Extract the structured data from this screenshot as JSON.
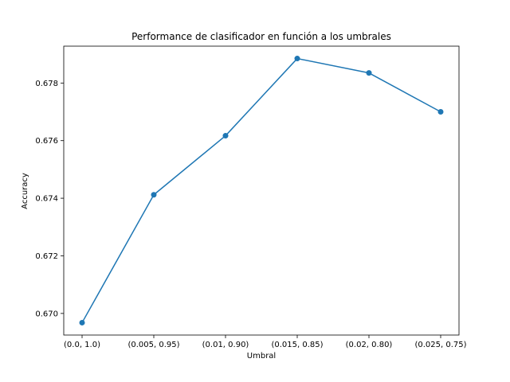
{
  "chart_data": {
    "type": "line",
    "title": "Performance de clasificador en función a los umbrales",
    "xlabel": "Umbral",
    "ylabel": "Accuracy",
    "categories": [
      "(0.0, 1.0)",
      "(0.005, 0.95)",
      "(0.01, 0.90)",
      "(0.015, 0.85)",
      "(0.02, 0.80)",
      "(0.025, 0.75)"
    ],
    "series": [
      {
        "values": [
          0.66968,
          0.67412,
          0.67617,
          0.67885,
          0.67835,
          0.677
        ],
        "color": "#1f77b4"
      }
    ],
    "yticks": [
      "0.670",
      "0.672",
      "0.674",
      "0.676",
      "0.678"
    ],
    "ylim": [
      0.66925,
      0.67928
    ],
    "grid": false,
    "legend": "none"
  }
}
